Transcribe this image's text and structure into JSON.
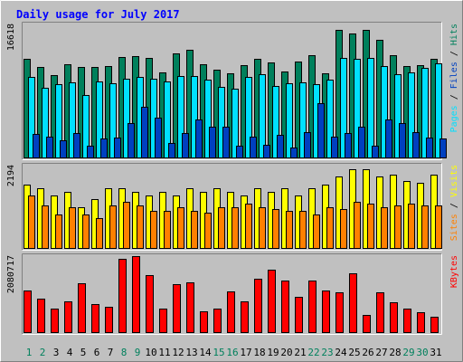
{
  "chart_data": {
    "type": "bar",
    "title": "Daily usage for July 2017",
    "colors": {
      "background": "#C0C0C0",
      "title": "#0000FF",
      "hits": "#00805C",
      "files": "#00E0FF",
      "pages": "#0040C0",
      "visits": "#FFFF00",
      "sites": "#FF8000",
      "kbytes": "#FF0000",
      "weekend_day_label": "#00805C",
      "weekday_day_label": "#000000"
    },
    "days": [
      "1",
      "2",
      "3",
      "4",
      "5",
      "6",
      "7",
      "8",
      "9",
      "10",
      "11",
      "12",
      "13",
      "14",
      "15",
      "16",
      "17",
      "18",
      "19",
      "20",
      "21",
      "22",
      "23",
      "24",
      "25",
      "26",
      "27",
      "28",
      "29",
      "30",
      "31"
    ],
    "weekend_days": [
      1,
      2,
      8,
      9,
      15,
      16,
      22,
      23,
      29,
      30
    ],
    "panels": [
      {
        "id": "hits-files-pages",
        "max_label": "16618",
        "ymax": 16618,
        "legend": [
          {
            "text": "Pages",
            "color": "#00E0FF"
          },
          {
            "text": " / ",
            "color": "#000000"
          },
          {
            "text": "Files",
            "color": "#0040C0"
          },
          {
            "text": " / ",
            "color": "#000000"
          },
          {
            "text": "Hits",
            "color": "#00805C"
          }
        ],
        "series": [
          {
            "name": "Hits",
            "color": "#00805C",
            "values": [
              12300,
              11300,
              10300,
              11700,
              11300,
              11300,
              11500,
              12600,
              12700,
              12500,
              10700,
              13000,
              13500,
              11700,
              11000,
              10600,
              11600,
              12300,
              11900,
              10800,
              12000,
              12800,
              10500,
              15900,
              15500,
              16000,
              14700,
              12800,
              11400,
              11600,
              12400
            ]
          },
          {
            "name": "Files",
            "color": "#00E0FF",
            "values": [
              10100,
              8800,
              9200,
              9400,
              7900,
              9600,
              9300,
              9900,
              10100,
              9900,
              9500,
              10200,
              10200,
              9800,
              8900,
              8600,
              10100,
              10400,
              9000,
              9300,
              9400,
              9200,
              9800,
              12500,
              12300,
              12500,
              11400,
              10400,
              10700,
              11200,
              11800
            ]
          },
          {
            "name": "Pages",
            "color": "#0040C0",
            "values": [
              3000,
              2700,
              2300,
              3200,
              1600,
              2500,
              2600,
              4400,
              6400,
              5000,
              1900,
              3200,
              4800,
              3900,
              3900,
              1600,
              2700,
              1700,
              2900,
              1300,
              3300,
              6800,
              2700,
              3100,
              3900,
              1600,
              4800,
              4400,
              3300,
              2600,
              2500
            ]
          }
        ]
      },
      {
        "id": "visits-sites",
        "max_label": "2194",
        "ymax": 2194,
        "legend": [
          {
            "text": "Sites",
            "color": "#FF8000"
          },
          {
            "text": " / ",
            "color": "#000000"
          },
          {
            "text": "Visits",
            "color": "#FFFF00"
          }
        ],
        "series": [
          {
            "name": "Visits",
            "color": "#FFFF00",
            "values": [
              1700,
              1600,
              1400,
              1500,
              1100,
              1300,
              1600,
              1600,
              1500,
              1400,
              1500,
              1400,
              1600,
              1500,
              1600,
              1500,
              1400,
              1600,
              1500,
              1600,
              1400,
              1600,
              1700,
              1900,
              2100,
              2100,
              1900,
              1950,
              1800,
              1750,
              1950
            ]
          },
          {
            "name": "Sites",
            "color": "#FF8000",
            "values": [
              1400,
              1150,
              900,
              1100,
              900,
              800,
              1150,
              1250,
              1150,
              1000,
              1000,
              1100,
              1000,
              950,
              1100,
              1100,
              1200,
              1100,
              1050,
              1000,
              1000,
              900,
              1100,
              1050,
              1250,
              1200,
              1100,
              1150,
              1200,
              1150,
              1150
            ]
          }
        ]
      },
      {
        "id": "kbytes",
        "max_label": "2080717",
        "ymax": 2080717,
        "legend": [
          {
            "text": "KBytes",
            "color": "#FF0000"
          }
        ],
        "series": [
          {
            "name": "KBytes",
            "color": "#FF0000",
            "values": [
              1140000,
              920000,
              650000,
              860000,
              1350000,
              790000,
              700000,
              2000000,
              2080717,
              1560000,
              660000,
              1330000,
              1380000,
              580000,
              650000,
              1130000,
              860000,
              1470000,
              1710000,
              1430000,
              990000,
              1430000,
              1160000,
              1110000,
              1620000,
              480000,
              1110000,
              830000,
              650000,
              570000,
              440000
            ]
          }
        ]
      }
    ]
  }
}
